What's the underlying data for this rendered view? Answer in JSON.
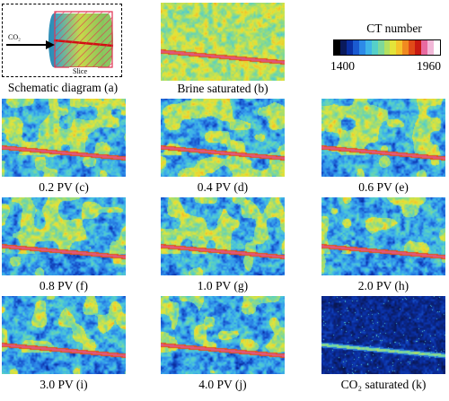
{
  "schematic": {
    "caption": "Schematic diagram (a)",
    "inlet_label": "CO₂",
    "slice_label": "Slice"
  },
  "colorbar": {
    "title": "CT number",
    "min_label": "1400",
    "max_label": "1960",
    "colors": [
      "#000000",
      "#0a1a5c",
      "#0a2fa3",
      "#1a5ad1",
      "#2d8ae8",
      "#3fb4e8",
      "#55cfc9",
      "#7ed89a",
      "#b4e060",
      "#e3e43a",
      "#f5c32a",
      "#f08a20",
      "#e04a18",
      "#c81a12",
      "#e86aa0",
      "#f2b8d8",
      "#ffffff"
    ]
  },
  "panels": [
    {
      "id": "b",
      "caption": "Brine saturated (b)",
      "state": "brine"
    },
    {
      "id": "c",
      "caption": "0.2 PV (c)",
      "state": "flood"
    },
    {
      "id": "d",
      "caption": "0.4 PV (d)",
      "state": "flood"
    },
    {
      "id": "e",
      "caption": "0.6 PV (e)",
      "state": "flood"
    },
    {
      "id": "f",
      "caption": "0.8 PV (f)",
      "state": "flood"
    },
    {
      "id": "g",
      "caption": "1.0 PV (g)",
      "state": "flood"
    },
    {
      "id": "h",
      "caption": "2.0 PV (h)",
      "state": "flood"
    },
    {
      "id": "i",
      "caption": "3.0 PV (i)",
      "state": "flood"
    },
    {
      "id": "j",
      "caption": "4.0 PV (j)",
      "state": "flood"
    },
    {
      "id": "k",
      "caption": "CO₂ saturated (k)",
      "state": "co2"
    }
  ]
}
